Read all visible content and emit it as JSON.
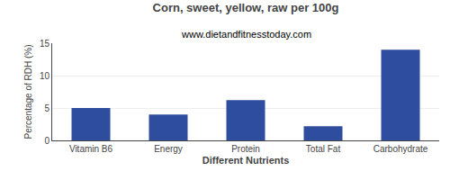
{
  "chart_data": {
    "type": "bar",
    "title": "Corn, sweet, yellow, raw per 100g",
    "subtitle": "www.dietandfitnesstoday.com",
    "xlabel": "Different Nutrients",
    "ylabel": "Percentage of RDH (%)",
    "categories": [
      "Vitamin B6",
      "Energy",
      "Protein",
      "Total Fat",
      "Carbohydrate"
    ],
    "values": [
      5.0,
      4.0,
      6.2,
      2.2,
      14.0
    ],
    "color": "#2e4d9e",
    "ylim": [
      0,
      15
    ],
    "yticks": [
      0,
      5,
      10,
      15
    ],
    "grid": true
  }
}
